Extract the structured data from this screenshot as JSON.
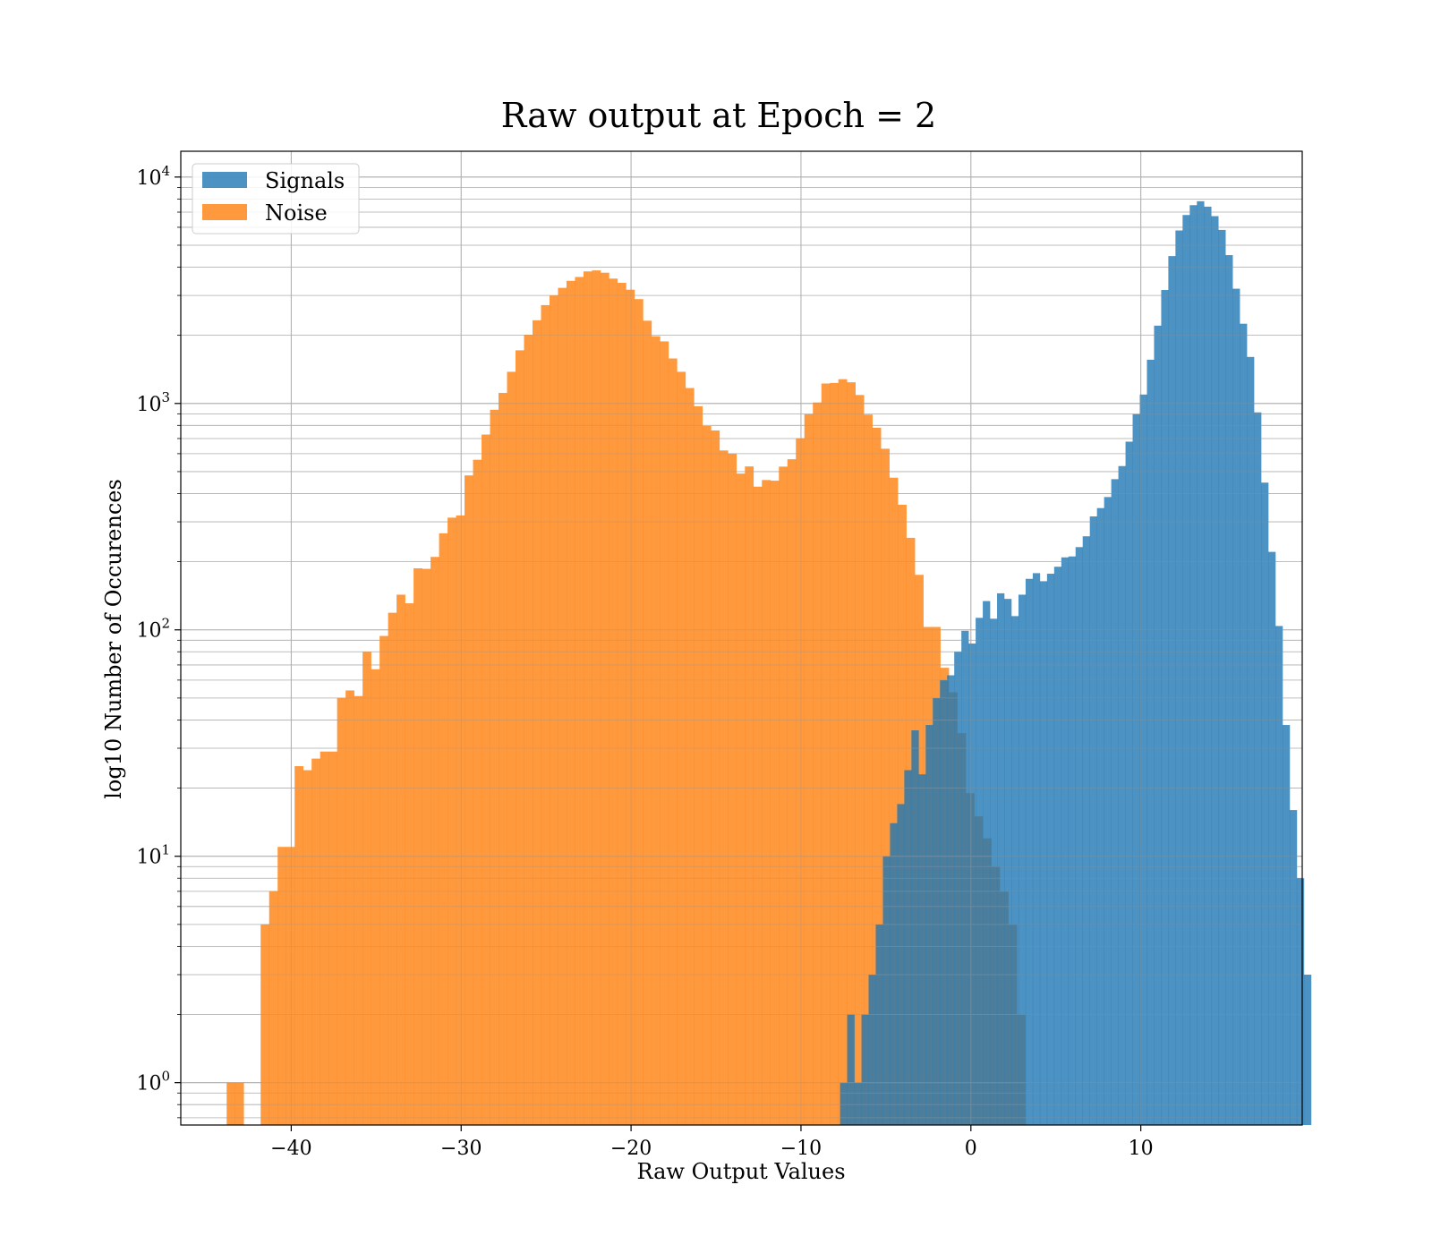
{
  "chart_data": {
    "type": "bar",
    "title": "Raw output at Epoch = 2",
    "xlabel": "Raw Output Values",
    "ylabel": "log10 Number of Occurences",
    "xlim": [
      -46.5,
      19.5
    ],
    "ylim": [
      0.65,
      13000
    ],
    "yscale": "log",
    "grid": true,
    "legend_position": "top-left",
    "x_ticks": [
      -40,
      -30,
      -20,
      -10,
      0,
      10
    ],
    "x_tick_labels": [
      "−40",
      "−30",
      "−20",
      "−10",
      "0",
      "10"
    ],
    "y_ticks": [
      1,
      10,
      100,
      1000,
      10000
    ],
    "y_tick_labels": [
      {
        "base": "10",
        "exp": "0"
      },
      {
        "base": "10",
        "exp": "1"
      },
      {
        "base": "10",
        "exp": "2"
      },
      {
        "base": "10",
        "exp": "3"
      },
      {
        "base": "10",
        "exp": "4"
      }
    ],
    "series": [
      {
        "name": "Noise",
        "color": "#ff7f0e",
        "opacity": 0.8,
        "bin_start": -43.8,
        "bin_width": 0.5,
        "values": [
          1,
          1,
          0,
          0,
          5,
          7,
          11,
          11,
          25,
          24,
          27,
          29,
          29,
          50,
          54,
          51,
          80,
          67,
          94,
          119,
          143,
          131,
          187,
          186,
          210,
          267,
          313,
          320,
          481,
          564,
          729,
          938,
          1113,
          1380,
          1717,
          2011,
          2331,
          2718,
          3000,
          3240,
          3480,
          3620,
          3830,
          3870,
          3780,
          3560,
          3410,
          3180,
          2890,
          2320,
          1982,
          1880,
          1580,
          1380,
          1170,
          972,
          795,
          760,
          620,
          600,
          490,
          527,
          429,
          459,
          456,
          526,
          567,
          701,
          896,
          1010,
          1225,
          1232,
          1280,
          1240,
          1090,
          893,
          781,
          631,
          470,
          357,
          255,
          175,
          103,
          103,
          68,
          53,
          35,
          19,
          15,
          12,
          9,
          7,
          5,
          2
        ]
      },
      {
        "name": "Signals",
        "color": "#1f77b4",
        "opacity": 0.8,
        "bin_start": -7.7,
        "bin_width": 0.42,
        "values": [
          1,
          2,
          1,
          2,
          3,
          5,
          10,
          14,
          17,
          24,
          36,
          23,
          38,
          50,
          60,
          63,
          80,
          99,
          87,
          113,
          134,
          112,
          145,
          137,
          115,
          143,
          168,
          178,
          164,
          177,
          190,
          209,
          211,
          232,
          259,
          317,
          345,
          386,
          463,
          529,
          678,
          896,
          1095,
          1560,
          2206,
          3170,
          4476,
          5808,
          6796,
          7512,
          7820,
          7400,
          6720,
          5840,
          4520,
          3212,
          2250,
          1605,
          913,
          447,
          221,
          104,
          38,
          16,
          8,
          3
        ]
      }
    ]
  }
}
